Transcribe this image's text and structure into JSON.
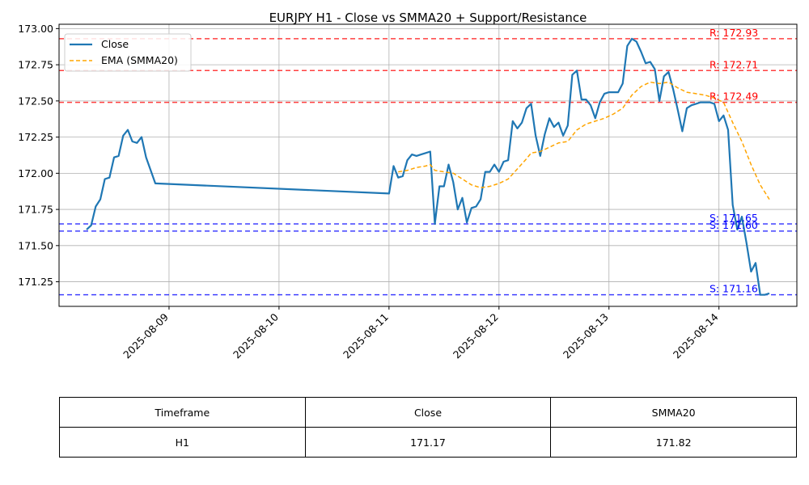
{
  "chart_data": {
    "type": "line",
    "title": "EURJPY H1 - Close vs SMMA20 + Support/Resistance",
    "xlabel": "",
    "ylabel": "",
    "x_range": [
      "2025-08-08 00:00",
      "2025-08-14 17:00"
    ],
    "ylim": [
      171.08,
      173.03
    ],
    "x_ticks": [
      "2025-08-09",
      "2025-08-10",
      "2025-08-11",
      "2025-08-12",
      "2025-08-13",
      "2025-08-14"
    ],
    "y_ticks": [
      171.25,
      171.5,
      171.75,
      172.0,
      172.25,
      172.5,
      172.75,
      173.0
    ],
    "y_tick_labels": [
      "171.25",
      "171.50",
      "171.75",
      "172.00",
      "172.25",
      "172.50",
      "172.75",
      "173.00"
    ],
    "grid": true,
    "legend": "top-left",
    "series": [
      {
        "name": "Close",
        "color": "#1f77b4",
        "style": "solid",
        "points": [
          [
            "2025-08-08 06:00",
            171.61
          ],
          [
            "2025-08-08 07:00",
            171.64
          ],
          [
            "2025-08-08 08:00",
            171.77
          ],
          [
            "2025-08-08 09:00",
            171.82
          ],
          [
            "2025-08-08 10:00",
            171.96
          ],
          [
            "2025-08-08 11:00",
            171.97
          ],
          [
            "2025-08-08 12:00",
            172.11
          ],
          [
            "2025-08-08 13:00",
            172.12
          ],
          [
            "2025-08-08 14:00",
            172.26
          ],
          [
            "2025-08-08 15:00",
            172.3
          ],
          [
            "2025-08-08 16:00",
            172.22
          ],
          [
            "2025-08-08 17:00",
            172.21
          ],
          [
            "2025-08-08 18:00",
            172.25
          ],
          [
            "2025-08-08 19:00",
            172.11
          ],
          [
            "2025-08-08 21:00",
            171.93
          ],
          [
            "2025-08-11 00:00",
            171.86
          ],
          [
            "2025-08-11 01:00",
            172.05
          ],
          [
            "2025-08-11 02:00",
            171.97
          ],
          [
            "2025-08-11 03:00",
            171.98
          ],
          [
            "2025-08-11 04:00",
            172.09
          ],
          [
            "2025-08-11 05:00",
            172.13
          ],
          [
            "2025-08-11 06:00",
            172.12
          ],
          [
            "2025-08-11 07:00",
            172.13
          ],
          [
            "2025-08-11 08:00",
            172.14
          ],
          [
            "2025-08-11 09:00",
            172.15
          ],
          [
            "2025-08-11 10:00",
            171.65
          ],
          [
            "2025-08-11 11:00",
            171.91
          ],
          [
            "2025-08-11 12:00",
            171.91
          ],
          [
            "2025-08-11 13:00",
            172.06
          ],
          [
            "2025-08-11 14:00",
            171.94
          ],
          [
            "2025-08-11 15:00",
            171.75
          ],
          [
            "2025-08-11 16:00",
            171.83
          ],
          [
            "2025-08-11 17:00",
            171.66
          ],
          [
            "2025-08-11 18:00",
            171.76
          ],
          [
            "2025-08-11 19:00",
            171.77
          ],
          [
            "2025-08-11 20:00",
            171.82
          ],
          [
            "2025-08-11 21:00",
            172.01
          ],
          [
            "2025-08-11 22:00",
            172.01
          ],
          [
            "2025-08-11 23:00",
            172.06
          ],
          [
            "2025-08-12 00:00",
            172.01
          ],
          [
            "2025-08-12 01:00",
            172.08
          ],
          [
            "2025-08-12 02:00",
            172.09
          ],
          [
            "2025-08-12 03:00",
            172.36
          ],
          [
            "2025-08-12 04:00",
            172.31
          ],
          [
            "2025-08-12 05:00",
            172.35
          ],
          [
            "2025-08-12 06:00",
            172.45
          ],
          [
            "2025-08-12 07:00",
            172.48
          ],
          [
            "2025-08-12 08:00",
            172.26
          ],
          [
            "2025-08-12 09:00",
            172.12
          ],
          [
            "2025-08-12 10:00",
            172.27
          ],
          [
            "2025-08-12 11:00",
            172.38
          ],
          [
            "2025-08-12 12:00",
            172.32
          ],
          [
            "2025-08-12 13:00",
            172.35
          ],
          [
            "2025-08-12 14:00",
            172.26
          ],
          [
            "2025-08-12 15:00",
            172.33
          ],
          [
            "2025-08-12 16:00",
            172.68
          ],
          [
            "2025-08-12 17:00",
            172.71
          ],
          [
            "2025-08-12 18:00",
            172.51
          ],
          [
            "2025-08-12 19:00",
            172.51
          ],
          [
            "2025-08-12 20:00",
            172.47
          ],
          [
            "2025-08-12 21:00",
            172.38
          ],
          [
            "2025-08-12 22:00",
            172.49
          ],
          [
            "2025-08-12 23:00",
            172.55
          ],
          [
            "2025-08-13 00:00",
            172.56
          ],
          [
            "2025-08-13 01:00",
            172.56
          ],
          [
            "2025-08-13 02:00",
            172.56
          ],
          [
            "2025-08-13 03:00",
            172.62
          ],
          [
            "2025-08-13 04:00",
            172.88
          ],
          [
            "2025-08-13 05:00",
            172.93
          ],
          [
            "2025-08-13 06:00",
            172.91
          ],
          [
            "2025-08-13 07:00",
            172.84
          ],
          [
            "2025-08-13 08:00",
            172.76
          ],
          [
            "2025-08-13 09:00",
            172.77
          ],
          [
            "2025-08-13 10:00",
            172.72
          ],
          [
            "2025-08-13 11:00",
            172.5
          ],
          [
            "2025-08-13 12:00",
            172.67
          ],
          [
            "2025-08-13 13:00",
            172.7
          ],
          [
            "2025-08-13 14:00",
            172.58
          ],
          [
            "2025-08-13 15:00",
            172.44
          ],
          [
            "2025-08-13 16:00",
            172.29
          ],
          [
            "2025-08-13 17:00",
            172.45
          ],
          [
            "2025-08-13 18:00",
            172.47
          ],
          [
            "2025-08-13 19:00",
            172.48
          ],
          [
            "2025-08-13 20:00",
            172.49
          ],
          [
            "2025-08-13 21:00",
            172.49
          ],
          [
            "2025-08-13 22:00",
            172.49
          ],
          [
            "2025-08-13 23:00",
            172.48
          ],
          [
            "2025-08-14 00:00",
            172.36
          ],
          [
            "2025-08-14 01:00",
            172.4
          ],
          [
            "2025-08-14 02:00",
            172.3
          ],
          [
            "2025-08-14 03:00",
            171.78
          ],
          [
            "2025-08-14 04:00",
            171.61
          ],
          [
            "2025-08-14 05:00",
            171.7
          ],
          [
            "2025-08-14 06:00",
            171.52
          ],
          [
            "2025-08-14 07:00",
            171.32
          ],
          [
            "2025-08-14 08:00",
            171.38
          ],
          [
            "2025-08-14 09:00",
            171.16
          ],
          [
            "2025-08-14 10:00",
            171.16
          ],
          [
            "2025-08-14 11:00",
            171.17
          ]
        ]
      },
      {
        "name": "EMA (SMMA20)",
        "color": "#ffa500",
        "style": "dashed",
        "points": [
          [
            "2025-08-11 02:00",
            172.01
          ],
          [
            "2025-08-11 04:00",
            172.02
          ],
          [
            "2025-08-11 06:00",
            172.04
          ],
          [
            "2025-08-11 08:00",
            172.05
          ],
          [
            "2025-08-11 09:00",
            172.06
          ],
          [
            "2025-08-11 10:00",
            172.02
          ],
          [
            "2025-08-11 12:00",
            172.01
          ],
          [
            "2025-08-11 14:00",
            172.0
          ],
          [
            "2025-08-11 16:00",
            171.96
          ],
          [
            "2025-08-11 18:00",
            171.92
          ],
          [
            "2025-08-11 20:00",
            171.9
          ],
          [
            "2025-08-11 22:00",
            171.91
          ],
          [
            "2025-08-12 00:00",
            171.93
          ],
          [
            "2025-08-12 02:00",
            171.96
          ],
          [
            "2025-08-12 04:00",
            172.03
          ],
          [
            "2025-08-12 06:00",
            172.1
          ],
          [
            "2025-08-12 07:00",
            172.14
          ],
          [
            "2025-08-12 09:00",
            172.15
          ],
          [
            "2025-08-12 11:00",
            172.18
          ],
          [
            "2025-08-12 13:00",
            172.21
          ],
          [
            "2025-08-12 15:00",
            172.22
          ],
          [
            "2025-08-12 17:00",
            172.3
          ],
          [
            "2025-08-12 19:00",
            172.34
          ],
          [
            "2025-08-12 21:00",
            172.36
          ],
          [
            "2025-08-12 23:00",
            172.38
          ],
          [
            "2025-08-13 01:00",
            172.41
          ],
          [
            "2025-08-13 03:00",
            172.45
          ],
          [
            "2025-08-13 05:00",
            172.54
          ],
          [
            "2025-08-13 07:00",
            172.6
          ],
          [
            "2025-08-13 09:00",
            172.63
          ],
          [
            "2025-08-13 11:00",
            172.62
          ],
          [
            "2025-08-13 13:00",
            172.63
          ],
          [
            "2025-08-13 15:00",
            172.59
          ],
          [
            "2025-08-13 17:00",
            172.56
          ],
          [
            "2025-08-13 19:00",
            172.55
          ],
          [
            "2025-08-13 21:00",
            172.54
          ],
          [
            "2025-08-13 23:00",
            172.52
          ],
          [
            "2025-08-14 01:00",
            172.49
          ],
          [
            "2025-08-14 03:00",
            172.35
          ],
          [
            "2025-08-14 05:00",
            172.22
          ],
          [
            "2025-08-14 07:00",
            172.06
          ],
          [
            "2025-08-14 09:00",
            171.92
          ],
          [
            "2025-08-14 11:00",
            171.82
          ]
        ]
      }
    ],
    "levels": [
      {
        "kind": "resistance",
        "value": 172.93,
        "label": "R: 172.93",
        "color": "#ff0000"
      },
      {
        "kind": "resistance",
        "value": 172.71,
        "label": "R: 172.71",
        "color": "#ff0000"
      },
      {
        "kind": "resistance",
        "value": 172.49,
        "label": "R: 172.49",
        "color": "#ff0000"
      },
      {
        "kind": "support",
        "value": 171.65,
        "label": "S: 171.65",
        "color": "#0000ff"
      },
      {
        "kind": "support",
        "value": 171.6,
        "label": "S: 171.60",
        "color": "#0000ff"
      },
      {
        "kind": "support",
        "value": 171.16,
        "label": "S: 171.16",
        "color": "#0000ff"
      }
    ]
  },
  "summary_table": {
    "headers": [
      "Timeframe",
      "Close",
      "SMMA20"
    ],
    "row": [
      "H1",
      "171.17",
      "171.82"
    ]
  }
}
